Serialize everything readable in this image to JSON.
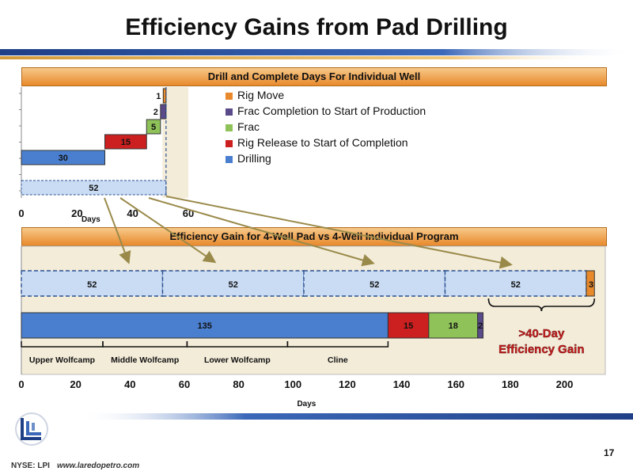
{
  "slide": {
    "title": "Efficiency Gains from Pad Drilling",
    "top_chart_header": "Drill and Complete Days For Individual Well",
    "bottom_chart_header": "Efficiency Gain for 4-Well Pad vs 4-Well Individual Program",
    "footer_ticker": "NYSE: LPI",
    "footer_url": "www.laredopetro.com",
    "page_number": "17",
    "gain_callout_line1": ">40-Day",
    "gain_callout_line2": "Efficiency Gain"
  },
  "legend": [
    {
      "label": "Rig Move",
      "color": "#e8892c"
    },
    {
      "label": "Frac Completion to Start of Production",
      "color": "#5b4a8a"
    },
    {
      "label": "Frac",
      "color": "#8fc35a"
    },
    {
      "label": "Rig Release to Start of Completion",
      "color": "#cc1f1f"
    },
    {
      "label": "Drilling",
      "color": "#4a7fd0"
    }
  ],
  "colors": {
    "rig_move": "#e8892c",
    "frac_completion": "#5b4a8a",
    "frac": "#8fc35a",
    "rig_release": "#cc1f1f",
    "drilling": "#4a7fd0",
    "total_light": "#c9dcf4",
    "plot_bg": "#f3ecd9",
    "arrow": "#9a8a4a",
    "callout": "#cc1f1f"
  },
  "chart_data": [
    {
      "type": "bar",
      "orientation": "horizontal-waterfall",
      "title": "Drill and Complete Days For Individual Well",
      "xlabel": "Days",
      "xlim": [
        0,
        60
      ],
      "xticks": [
        0,
        20,
        40,
        60
      ],
      "bars": [
        {
          "series": "Rig Move",
          "start": 51,
          "value": 1,
          "label": "1"
        },
        {
          "series": "Frac Completion to Start of Production",
          "start": 50,
          "value": 2,
          "label": "2"
        },
        {
          "series": "Frac",
          "start": 45,
          "value": 5,
          "label": "5"
        },
        {
          "series": "Rig Release to Start of Completion",
          "start": 30,
          "value": 15,
          "label": "15"
        },
        {
          "series": "Drilling",
          "start": 0,
          "value": 30,
          "label": "30"
        },
        {
          "series": "Total",
          "start": 0,
          "value": 52,
          "label": "52"
        }
      ]
    },
    {
      "type": "bar",
      "orientation": "horizontal-stacked",
      "title": "Efficiency Gain for 4-Well Pad vs 4-Well Individual Program",
      "xlabel": "Days",
      "xlim": [
        0,
        215
      ],
      "xticks": [
        0,
        20,
        40,
        60,
        80,
        100,
        120,
        140,
        160,
        180,
        200
      ],
      "individual_program": [
        {
          "series": "Total",
          "value": 52,
          "label": "52"
        },
        {
          "series": "Total",
          "value": 52,
          "label": "52"
        },
        {
          "series": "Total",
          "value": 52,
          "label": "52"
        },
        {
          "series": "Total",
          "value": 52,
          "label": "52"
        },
        {
          "series": "Rig Move",
          "value": 3,
          "label": "3"
        }
      ],
      "pad_program": [
        {
          "series": "Drilling",
          "value": 135,
          "label": "135"
        },
        {
          "series": "Rig Release to Start of Completion",
          "value": 15,
          "label": "15"
        },
        {
          "series": "Frac",
          "value": 18,
          "label": "18"
        },
        {
          "series": "Frac Completion to Start of Production",
          "value": 2,
          "label": "2"
        }
      ],
      "formations": [
        {
          "label": "Upper Wolfcamp",
          "start": 0,
          "end": 30
        },
        {
          "label": "Middle Wolfcamp",
          "start": 30,
          "end": 61
        },
        {
          "label": "Lower Wolfcamp",
          "start": 61,
          "end": 98
        },
        {
          "label": "Cline",
          "start": 98,
          "end": 135
        }
      ]
    }
  ]
}
